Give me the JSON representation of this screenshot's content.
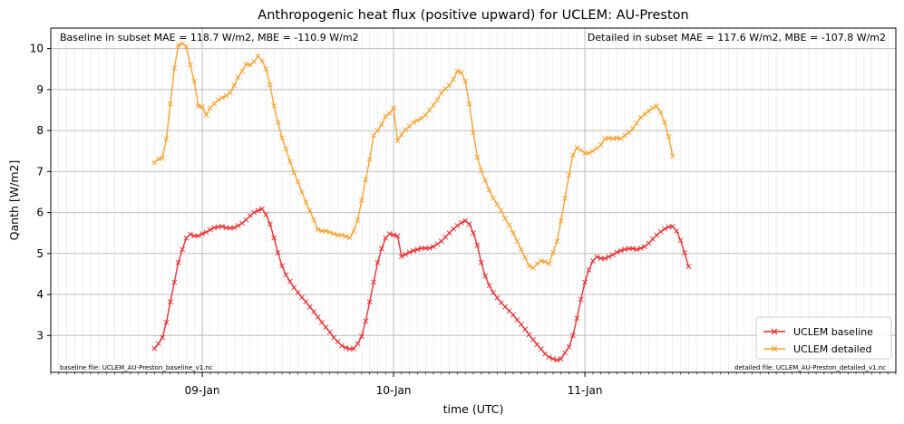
{
  "chart_data": {
    "type": "line",
    "title": "Anthropogenic heat flux (positive upward) for UCLEM: AU-Preston",
    "xlabel": "time (UTC)",
    "ylabel": "Qanth [W/m2]",
    "x_unit": "hours",
    "xlim": [
      -19.0,
      87.0
    ],
    "ylim": [
      2.1,
      10.5
    ],
    "x_ticks": [
      {
        "value": 0,
        "label": "09-Jan"
      },
      {
        "value": 24,
        "label": "10-Jan"
      },
      {
        "value": 48,
        "label": "11-Jan"
      }
    ],
    "y_ticks": [
      3,
      4,
      5,
      6,
      7,
      8,
      9,
      10
    ],
    "grid": true,
    "legend_position": "bottom-right",
    "annotations": {
      "top_left": "Baseline in subset MAE = 118.7 W/m2, MBE = -110.9 W/m2",
      "top_right": "Detailed in subset MAE = 117.6 W/m2, MBE = -107.8 W/m2",
      "bottom_left": "baseline file: UCLEM_AU-Preston_baseline_v1.nc",
      "bottom_right": "detailed file: UCLEM_AU-Preston_detailed_v1.nc"
    },
    "series": [
      {
        "name": "UCLEM baseline",
        "color": "#e8272a",
        "marker": "x",
        "x_start": -6.0,
        "x_step": 0.5,
        "values": [
          2.68,
          2.8,
          2.95,
          3.32,
          3.82,
          4.3,
          4.78,
          5.1,
          5.38,
          5.47,
          5.43,
          5.43,
          5.48,
          5.52,
          5.58,
          5.63,
          5.65,
          5.66,
          5.63,
          5.62,
          5.63,
          5.68,
          5.74,
          5.82,
          5.92,
          6.0,
          6.05,
          6.09,
          5.95,
          5.72,
          5.38,
          5.02,
          4.7,
          4.48,
          4.32,
          4.17,
          4.05,
          3.93,
          3.82,
          3.7,
          3.58,
          3.45,
          3.32,
          3.2,
          3.08,
          2.95,
          2.85,
          2.75,
          2.7,
          2.67,
          2.68,
          2.8,
          2.98,
          3.35,
          3.82,
          4.3,
          4.78,
          5.12,
          5.38,
          5.48,
          5.45,
          5.43,
          4.93,
          4.98,
          5.03,
          5.07,
          5.1,
          5.13,
          5.13,
          5.13,
          5.17,
          5.23,
          5.3,
          5.4,
          5.5,
          5.6,
          5.68,
          5.75,
          5.8,
          5.72,
          5.5,
          5.2,
          4.78,
          4.45,
          4.22,
          4.05,
          3.92,
          3.8,
          3.7,
          3.6,
          3.5,
          3.38,
          3.27,
          3.15,
          3.02,
          2.9,
          2.78,
          2.67,
          2.55,
          2.47,
          2.43,
          2.4,
          2.43,
          2.58,
          2.72,
          3.0,
          3.42,
          3.88,
          4.3,
          4.6,
          4.82,
          4.92,
          4.88,
          4.88,
          4.92,
          4.97,
          5.03,
          5.07,
          5.1,
          5.12,
          5.12,
          5.1,
          5.13,
          5.17,
          5.25,
          5.35,
          5.45,
          5.53,
          5.6,
          5.65,
          5.66,
          5.55,
          5.32,
          5.02,
          4.68
        ]
      },
      {
        "name": "UCLEM detailed",
        "color": "#f5a02c",
        "marker": "x",
        "x_start": -6.0,
        "x_step": 0.5,
        "values": [
          7.22,
          7.3,
          7.33,
          7.8,
          8.65,
          9.52,
          10.08,
          10.12,
          10.05,
          9.6,
          9.2,
          8.6,
          8.58,
          8.38,
          8.55,
          8.65,
          8.75,
          8.8,
          8.85,
          8.92,
          9.1,
          9.3,
          9.45,
          9.62,
          9.6,
          9.68,
          9.82,
          9.7,
          9.5,
          9.12,
          8.6,
          8.2,
          7.82,
          7.55,
          7.25,
          6.98,
          6.75,
          6.5,
          6.25,
          6.05,
          5.82,
          5.58,
          5.55,
          5.55,
          5.52,
          5.48,
          5.45,
          5.45,
          5.42,
          5.38,
          5.55,
          5.82,
          6.3,
          6.8,
          7.3,
          7.88,
          8.0,
          8.15,
          8.35,
          8.42,
          8.55,
          7.75,
          7.9,
          8.02,
          8.1,
          8.2,
          8.25,
          8.3,
          8.38,
          8.5,
          8.62,
          8.75,
          8.92,
          9.02,
          9.1,
          9.25,
          9.45,
          9.42,
          9.2,
          8.65,
          7.95,
          7.35,
          7.02,
          6.78,
          6.55,
          6.35,
          6.2,
          6.05,
          5.85,
          5.7,
          5.5,
          5.3,
          5.1,
          4.9,
          4.7,
          4.65,
          4.75,
          4.82,
          4.8,
          4.75,
          5.02,
          5.3,
          5.8,
          6.35,
          6.92,
          7.4,
          7.58,
          7.52,
          7.45,
          7.45,
          7.5,
          7.57,
          7.65,
          7.8,
          7.82,
          7.8,
          7.82,
          7.8,
          7.88,
          7.95,
          8.05,
          8.18,
          8.32,
          8.4,
          8.48,
          8.55,
          8.6,
          8.45,
          8.2,
          7.85,
          7.38
        ]
      }
    ]
  }
}
